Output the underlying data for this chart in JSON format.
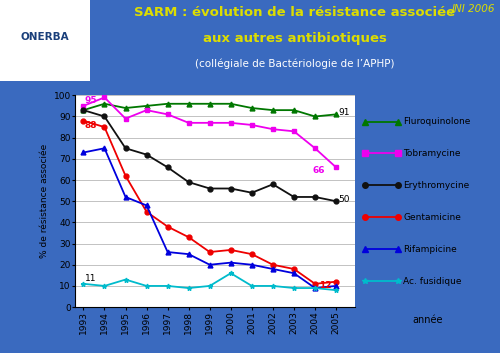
{
  "title_line1": "SARM : évolution de la résistance associée",
  "title_line2": "aux autres antibiotiques",
  "title_line3": "(collégiale de Bactériologie de l’APHP)",
  "jni_label": "JNI 2006",
  "xlabel": "année",
  "ylabel": "% de résistance associée",
  "years": [
    1993,
    1994,
    1995,
    1996,
    1997,
    1998,
    1999,
    2000,
    2001,
    2002,
    2003,
    2004,
    2005
  ],
  "fluroquinolone": [
    93,
    96,
    94,
    95,
    96,
    96,
    96,
    96,
    94,
    93,
    93,
    90,
    91
  ],
  "tobramycine": [
    95,
    99,
    89,
    93,
    91,
    87,
    87,
    87,
    86,
    84,
    83,
    75,
    66
  ],
  "erythromycine": [
    93,
    90,
    75,
    72,
    66,
    59,
    56,
    56,
    54,
    58,
    52,
    52,
    50
  ],
  "gentamicine": [
    88,
    85,
    62,
    45,
    38,
    33,
    26,
    27,
    25,
    20,
    18,
    11,
    12
  ],
  "rifampicine": [
    73,
    75,
    52,
    48,
    26,
    25,
    20,
    21,
    20,
    18,
    16,
    9,
    10
  ],
  "ac_fusidique": [
    11,
    10,
    13,
    10,
    10,
    9,
    10,
    16,
    10,
    10,
    9,
    9,
    8
  ],
  "colors": {
    "fluroquinolone": "#007700",
    "tobramycine": "#ee00ee",
    "erythromycine": "#111111",
    "gentamicine": "#ee0000",
    "rifampicine": "#0000dd",
    "ac_fusidique": "#00bbcc"
  },
  "markers": {
    "fluroquinolone": "^",
    "tobramycine": "s",
    "erythromycine": "o",
    "gentamicine": "o",
    "rifampicine": "^",
    "ac_fusidique": "*"
  },
  "legend_labels": [
    "Fluroquinolone",
    "Tobramycine",
    "Erythromycine",
    "Gentamicine",
    "Rifampicine",
    "Ac. fusidique"
  ],
  "header_bg": "#1a3f7a",
  "outer_bg": "#3a6abf",
  "plot_bg": "#e8eef5",
  "white": "#ffffff",
  "title_color": "#dddd00",
  "subtitle_color": "#ffffff",
  "jni_color": "#dddd00",
  "ylim": [
    0,
    100
  ],
  "yticks": [
    0,
    10,
    20,
    30,
    40,
    50,
    60,
    70,
    80,
    90,
    100
  ]
}
